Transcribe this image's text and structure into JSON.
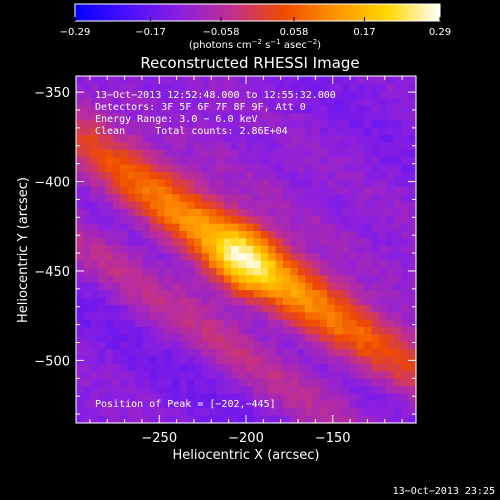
{
  "chart_data": {
    "type": "heatmap",
    "title": "Reconstructed RHESSI Image",
    "xlabel": "Heliocentric X (arcsec)",
    "ylabel": "Heliocentric Y (arcsec)",
    "xlim": [
      -298,
      -102
    ],
    "ylim": [
      -535,
      -341
    ],
    "x_ticks": [
      -250,
      -200,
      -150
    ],
    "x_tick_labels": [
      "−250",
      "−200",
      "−150"
    ],
    "y_ticks": [
      -350,
      -400,
      -450,
      -500
    ],
    "y_tick_labels": [
      "−350",
      "−400",
      "−450",
      "−500"
    ],
    "colorbar": {
      "min": -0.29,
      "max": 0.29,
      "ticks": [
        -0.29,
        -0.17,
        -0.058,
        0.058,
        0.17,
        0.29
      ],
      "tick_labels": [
        "−0.29",
        "−0.17",
        "−0.058",
        "0.058",
        "0.17",
        "0.29"
      ],
      "unit_parts": [
        "(photons cm",
        "−2",
        " s",
        "−1",
        " asec",
        "−2",
        ")"
      ],
      "colormap": [
        "#0000ff",
        "#4b0fff",
        "#8a1fe0",
        "#c03090",
        "#ee4a00",
        "#ff9400",
        "#ffd800",
        "#ffffff"
      ]
    },
    "annotations": [
      "13−Oct−2013 12:52:48.000 to 12:55:32.000",
      "Detectors: 3F 5F 6F 7F 8F 9F, Att 0",
      "Energy Range: 3.0 − 6.0 keV",
      "Clean     Total counts: 2.86E+04"
    ],
    "peak_label": "Position of Peak = [−202,−445]",
    "peak": [
      -202,
      -445
    ],
    "source": {
      "angle_deg": 34,
      "major_sigma": 95,
      "minor_sigma": 12,
      "core_sigma": 14,
      "background": -0.13,
      "amplitude": 0.27
    }
  },
  "footer": {
    "timestamp": "13−Oct−2013 23:25"
  }
}
